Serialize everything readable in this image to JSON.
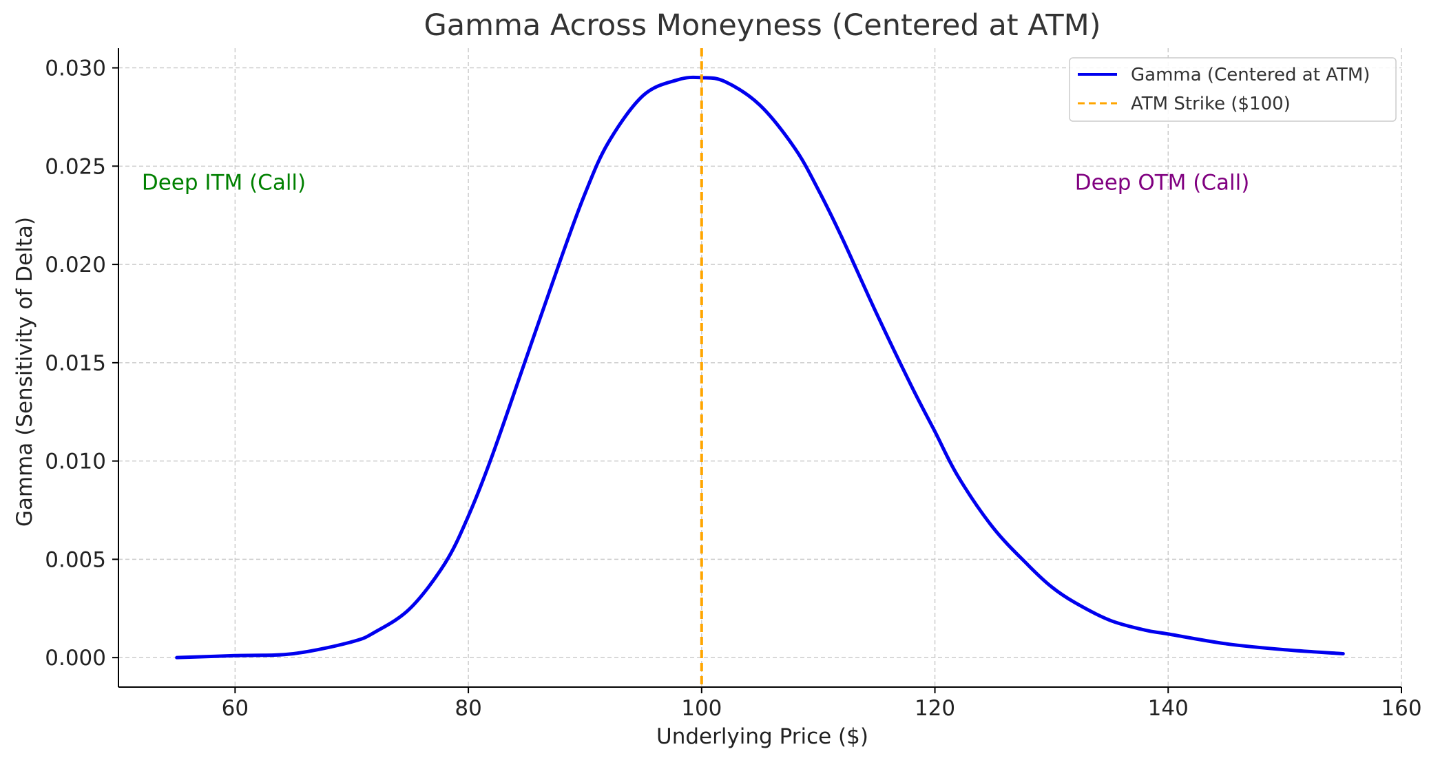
{
  "chart_data": {
    "type": "line",
    "title": "Gamma Across Moneyness (Centered at ATM)",
    "xlabel": "Underlying Price ($)",
    "ylabel": "Gamma (Sensitivity of Delta)",
    "xlim": [
      50,
      160
    ],
    "ylim": [
      -0.0015,
      0.031
    ],
    "x_ticks": [
      60,
      80,
      100,
      120,
      140,
      160
    ],
    "x_tick_labels": [
      "60",
      "80",
      "100",
      "120",
      "140",
      "160"
    ],
    "y_ticks": [
      0.0,
      0.005,
      0.01,
      0.015,
      0.02,
      0.025,
      0.03
    ],
    "y_tick_labels": [
      "0.000",
      "0.005",
      "0.010",
      "0.015",
      "0.020",
      "0.025",
      "0.030"
    ],
    "grid": true,
    "legend_position": "top-right",
    "series": [
      {
        "name": "Gamma (Centered at ATM)",
        "color": "#0000ee",
        "style": "solid",
        "x": [
          55,
          60,
          65,
          70,
          72,
          75,
          78,
          80,
          82,
          85,
          88,
          90,
          92,
          95,
          98,
          100,
          102,
          105,
          108,
          110,
          112,
          115,
          118,
          120,
          122,
          125,
          128,
          130,
          132,
          135,
          138,
          140,
          145,
          150,
          155
        ],
        "y": [
          0.0,
          0.0001,
          0.0002,
          0.0008,
          0.0013,
          0.0025,
          0.0048,
          0.0072,
          0.0102,
          0.0153,
          0.0204,
          0.0236,
          0.0262,
          0.0286,
          0.0294,
          0.0295,
          0.0293,
          0.0281,
          0.0259,
          0.0238,
          0.0214,
          0.0175,
          0.0138,
          0.0115,
          0.0092,
          0.0066,
          0.0047,
          0.0036,
          0.0028,
          0.0019,
          0.0014,
          0.0012,
          0.0007,
          0.0004,
          0.0002
        ]
      },
      {
        "name": "ATM Strike ($100)",
        "color": "#ffa500",
        "style": "dashed",
        "type": "vline",
        "x_value": 100
      }
    ],
    "annotations": [
      {
        "text": "Deep ITM (Call)",
        "x": 52,
        "y": 0.0238,
        "color": "#008000"
      },
      {
        "text": "Deep OTM (Call)",
        "x": 132,
        "y": 0.0238,
        "color": "#800080"
      }
    ]
  }
}
